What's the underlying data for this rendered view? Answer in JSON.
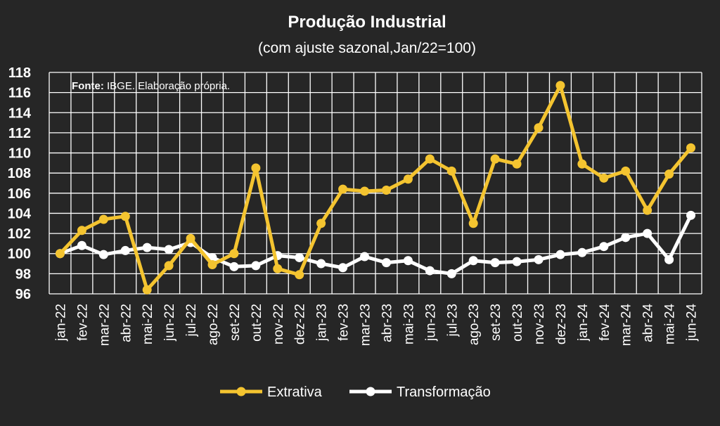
{
  "chart_data": {
    "type": "line",
    "title": "Produção Industrial",
    "subtitle": "(com ajuste sazonal,Jan/22=100)",
    "note_bold": "Fonte:",
    "note_text": " IBGE. Elaboração própria.",
    "xlabel": "",
    "ylabel": "",
    "ylim": [
      96,
      118
    ],
    "yticks": [
      96,
      98,
      100,
      102,
      104,
      106,
      108,
      110,
      112,
      114,
      116,
      118
    ],
    "grid": true,
    "legend_position": "bottom",
    "categories": [
      "jan-22",
      "fev-22",
      "mar-22",
      "abr-22",
      "mai-22",
      "jun-22",
      "jul-22",
      "ago-22",
      "set-22",
      "out-22",
      "nov-22",
      "dez-22",
      "jan-23",
      "fev-23",
      "mar-23",
      "abr-23",
      "mai-23",
      "jun-23",
      "jul-23",
      "ago-23",
      "set-23",
      "out-23",
      "nov-23",
      "dez-23",
      "jan-24",
      "fev-24",
      "mar-24",
      "abr-24",
      "mai-24",
      "jun-24"
    ],
    "series": [
      {
        "name": "Extrativa",
        "color": "#F4C430",
        "values": [
          100.0,
          102.3,
          103.4,
          103.7,
          96.4,
          98.8,
          101.5,
          98.9,
          100.0,
          108.5,
          98.5,
          97.9,
          103.0,
          106.4,
          106.2,
          106.3,
          107.4,
          109.4,
          108.2,
          103.0,
          109.4,
          108.9,
          112.5,
          116.7,
          108.9,
          107.5,
          108.2,
          104.3,
          107.9,
          110.5
        ]
      },
      {
        "name": "Transformação",
        "color": "#FFFFFF",
        "values": [
          100.0,
          100.8,
          99.9,
          100.3,
          100.6,
          100.4,
          101.1,
          99.6,
          98.7,
          98.8,
          99.8,
          99.6,
          99.0,
          98.6,
          99.7,
          99.1,
          99.3,
          98.3,
          98.0,
          99.3,
          99.1,
          99.2,
          99.4,
          99.9,
          100.1,
          100.7,
          101.6,
          102.0,
          99.4,
          103.8
        ]
      }
    ]
  }
}
